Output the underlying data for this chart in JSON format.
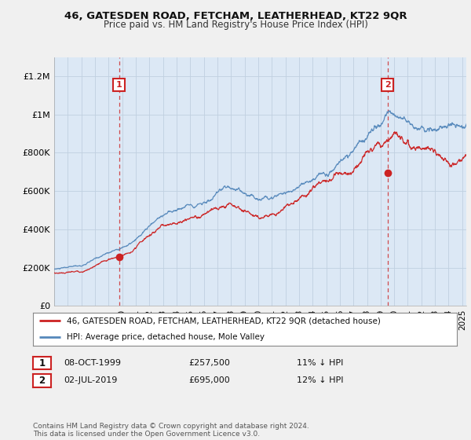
{
  "title": "46, GATESDEN ROAD, FETCHAM, LEATHERHEAD, KT22 9QR",
  "subtitle": "Price paid vs. HM Land Registry's House Price Index (HPI)",
  "ylabel_ticks": [
    "£0",
    "£200K",
    "£400K",
    "£600K",
    "£800K",
    "£1M",
    "£1.2M"
  ],
  "ytick_values": [
    0,
    200000,
    400000,
    600000,
    800000,
    1000000,
    1200000
  ],
  "ylim": [
    0,
    1300000
  ],
  "xlim_start": 1995.0,
  "xlim_end": 2025.3,
  "hpi_color": "#5588bb",
  "price_color": "#cc2222",
  "vline_color": "#cc2222",
  "legend_label_price": "46, GATESDEN ROAD, FETCHAM, LEATHERHEAD, KT22 9QR (detached house)",
  "legend_label_hpi": "HPI: Average price, detached house, Mole Valley",
  "sale1_date": "08-OCT-1999",
  "sale1_price": "£257,500",
  "sale1_note": "11% ↓ HPI",
  "sale1_year": 1999.77,
  "sale1_value": 257500,
  "sale2_date": "02-JUL-2019",
  "sale2_price": "£695,000",
  "sale2_note": "12% ↓ HPI",
  "sale2_year": 2019.5,
  "sale2_value": 695000,
  "footer": "Contains HM Land Registry data © Crown copyright and database right 2024.\nThis data is licensed under the Open Government Licence v3.0.",
  "plot_bg_color": "#dce8f5",
  "background_color": "#f0f0f0",
  "grid_color": "#c0d0e0",
  "label_box_color": "#cc2222"
}
